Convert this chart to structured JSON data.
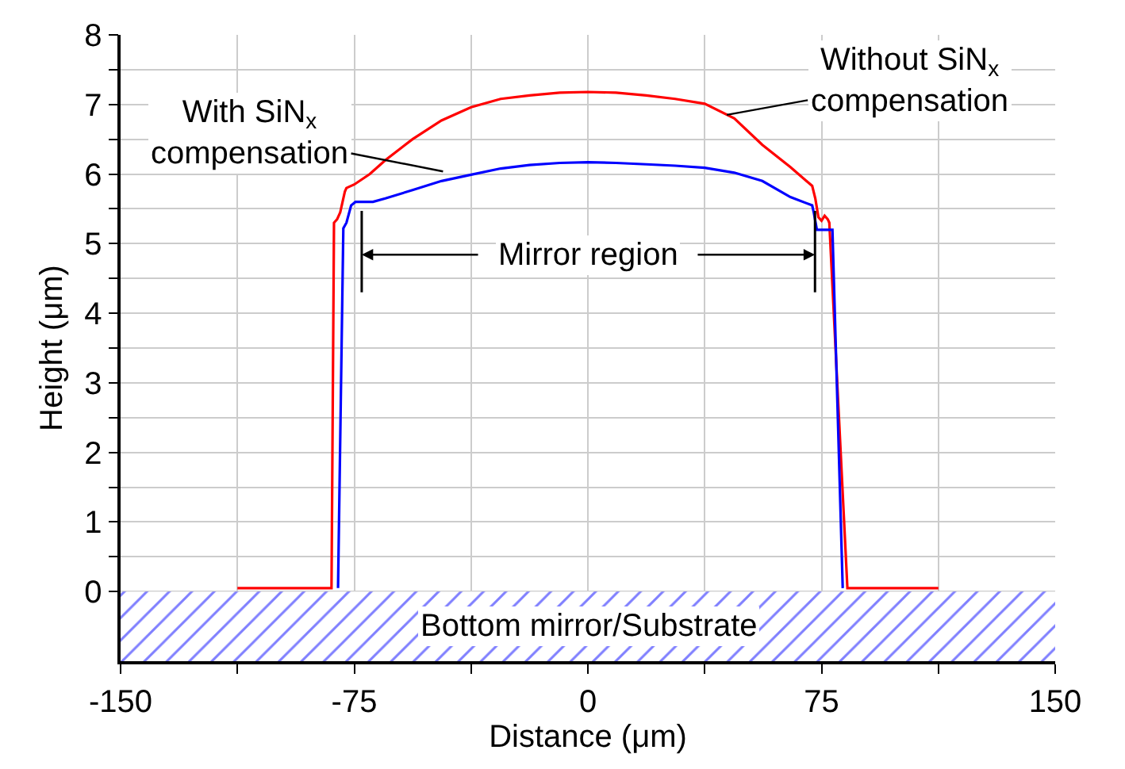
{
  "chart_data": {
    "type": "line",
    "xlabel": "Distance (μm)",
    "ylabel": "Height (μm)",
    "xlim": [
      -150,
      150
    ],
    "ylim": [
      -1,
      8
    ],
    "xticks": [
      -150,
      {
        "value": -112.5,
        "label": null
      },
      -75,
      {
        "value": -37.5,
        "label": null
      },
      0,
      {
        "value": 37.5,
        "label": null
      },
      75,
      {
        "value": 112.5,
        "label": null
      },
      150
    ],
    "yticks": [
      0,
      {
        "value": 0.5,
        "label": null
      },
      1,
      {
        "value": 1.5,
        "label": null
      },
      2,
      {
        "value": 2.5,
        "label": null
      },
      3,
      {
        "value": 3.5,
        "label": null
      },
      4,
      {
        "value": 4.5,
        "label": null
      },
      5,
      {
        "value": 5.5,
        "label": null
      },
      6,
      {
        "value": 6.5,
        "label": null
      },
      7,
      {
        "value": 7.5,
        "label": null
      },
      8
    ],
    "grid": true,
    "marker": "none",
    "line_style": "solid",
    "series": [
      {
        "color": "#ff0000",
        "x": [
          -112.5,
          -82.3,
          -81.5,
          -80.5,
          -79.5,
          -78,
          -77.5,
          -75,
          -70,
          -65,
          -56.3,
          -47,
          -37.5,
          -28,
          -18.75,
          -9,
          0,
          9,
          18.75,
          28,
          37.5,
          47,
          56,
          65,
          72,
          73,
          74,
          75,
          76,
          77,
          77.5,
          83.3,
          112.5
        ],
        "values": [
          0.05,
          0.05,
          5.3,
          5.35,
          5.45,
          5.75,
          5.8,
          5.85,
          6.0,
          6.2,
          6.5,
          6.77,
          6.96,
          7.08,
          7.13,
          7.17,
          7.18,
          7.17,
          7.13,
          7.08,
          7.01,
          6.8,
          6.42,
          6.1,
          5.83,
          5.65,
          5.38,
          5.33,
          5.4,
          5.35,
          5.3,
          0.05,
          0.05
        ]
      },
      {
        "color": "#0000ff",
        "x": [
          -80.2,
          -78.5,
          -77.5,
          -76,
          -74.6,
          -69,
          -65,
          -56.3,
          -47,
          -37.5,
          -28,
          -18.75,
          -9,
          0,
          9,
          18.75,
          28,
          37.5,
          47,
          56,
          65,
          72,
          72.5,
          73.5,
          78.5,
          81.8
        ],
        "values": [
          0.05,
          5.22,
          5.3,
          5.55,
          5.6,
          5.6,
          5.65,
          5.77,
          5.9,
          5.99,
          6.08,
          6.13,
          6.16,
          6.17,
          6.16,
          6.14,
          6.12,
          6.09,
          6.02,
          5.9,
          5.67,
          5.55,
          5.45,
          5.2,
          5.2,
          0.05
        ]
      }
    ],
    "bands": [
      {
        "axis": "y",
        "from": -1,
        "to": 0,
        "label": "Bottom mirror/Substrate",
        "color": "#0000ff"
      }
    ],
    "annotations": [
      "With SiN$_{x}$\ncompensation",
      {
        "text": "Without SiN$_{x}$\ncompensation",
        "x": 44.6,
        "y": 6.85
      },
      "Mirror region"
    ]
  }
}
